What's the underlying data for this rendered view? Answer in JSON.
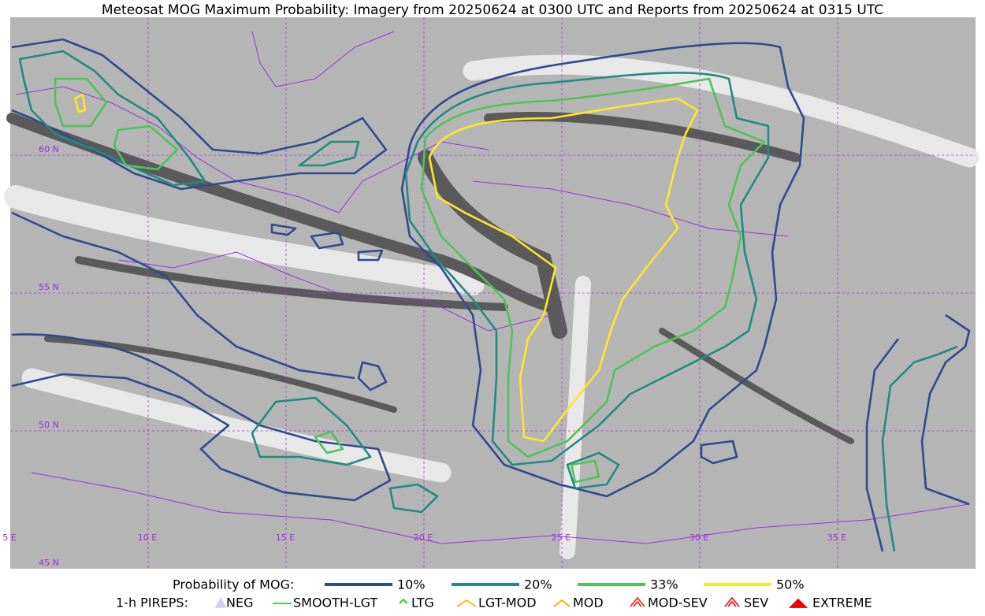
{
  "title": "Meteosat MOG Maximum Probability: Imagery from 20250624 at 0300 UTC and Reports from 20250624 at 0315 UTC",
  "map": {
    "lon_labels": [
      "5 E",
      "10 E",
      "15 E",
      "20 E",
      "25 E",
      "30 E",
      "35 E"
    ],
    "lat_labels": [
      "45 N",
      "50 N",
      "55 N",
      "60 N"
    ]
  },
  "legend": {
    "probability": {
      "label": "Probability of MOG:",
      "items": [
        {
          "label": "10%",
          "color": "#2f4b8a"
        },
        {
          "label": "20%",
          "color": "#208b82"
        },
        {
          "label": "33%",
          "color": "#4dc35b"
        },
        {
          "label": "50%",
          "color": "#fde725"
        }
      ]
    },
    "pireps": {
      "label": "1-h PIREPS:",
      "items": [
        {
          "label": "NEG",
          "color": "#b9b2f5"
        },
        {
          "label": "SMOOTH-LGT",
          "color": "#33cc33"
        },
        {
          "label": "LTG",
          "color": "#00dd00"
        },
        {
          "label": "LGT-MOD",
          "color": "#f5b800"
        },
        {
          "label": "MOD",
          "color": "#f5a800"
        },
        {
          "label": "MOD-SEV",
          "color": "#ee3333"
        },
        {
          "label": "SEV",
          "color": "#ee2222"
        },
        {
          "label": "EXTREME",
          "color": "#ee0000"
        }
      ]
    }
  }
}
